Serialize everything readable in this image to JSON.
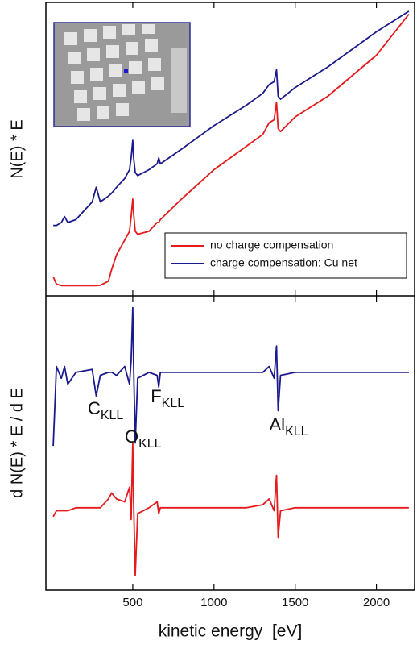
{
  "chart_data": [
    {
      "type": "line",
      "ylabel": "N(E) * E",
      "x": [
        10,
        30,
        60,
        80,
        100,
        150,
        250,
        275,
        300,
        350,
        370,
        400,
        450,
        480,
        490,
        500,
        505,
        515,
        530,
        600,
        650,
        660,
        670,
        800,
        1000,
        1200,
        1300,
        1340,
        1370,
        1385,
        1395,
        1410,
        1500,
        1700,
        2000,
        2200
      ],
      "xlim": [
        -35,
        2235
      ],
      "xticks": [
        500,
        1000,
        1500,
        2000
      ],
      "ylim": [
        0,
        100
      ],
      "legend": "lower right",
      "series": [
        {
          "name": "no charge compensation",
          "color": "#e41a1c",
          "values": [
            6.5,
            4,
            3.5,
            3.5,
            3.5,
            3.5,
            3.5,
            3.5,
            3.6,
            5,
            9,
            14,
            19,
            22,
            27,
            33,
            28,
            22,
            21,
            22,
            25,
            25,
            26,
            33,
            43,
            51,
            55,
            59,
            60,
            66,
            57,
            56,
            61,
            68,
            82,
            96
          ]
        },
        {
          "name": "charge compensation: Cu net",
          "color": "#1a1a8c",
          "values": [
            24,
            24,
            25,
            27,
            25,
            26,
            32,
            37,
            32,
            34,
            35,
            37,
            40,
            43,
            47,
            53,
            47,
            42,
            41,
            43,
            45,
            47,
            45,
            50,
            58,
            65,
            69,
            72,
            73,
            77,
            68,
            67,
            71,
            78,
            90,
            97
          ]
        }
      ]
    },
    {
      "type": "line",
      "ylabel": "d N(E) * E / d E",
      "xlabel": "kinetic energy  [eV]",
      "x": [
        10,
        30,
        60,
        80,
        100,
        150,
        250,
        275,
        300,
        350,
        370,
        400,
        450,
        480,
        490,
        500,
        505,
        515,
        530,
        600,
        650,
        660,
        670,
        800,
        1000,
        1200,
        1300,
        1340,
        1370,
        1385,
        1395,
        1410,
        1500,
        1700,
        2000,
        2200
      ],
      "xlim": [
        -35,
        2235
      ],
      "xticks": [
        500,
        1000,
        1500,
        2000
      ],
      "ylim": [
        0,
        100
      ],
      "series": [
        {
          "color": "#1a1a8c",
          "values": [
            49,
            76,
            72,
            76,
            70,
            74,
            75,
            66,
            73,
            74,
            74,
            73,
            76,
            70,
            78,
            96,
            76,
            50,
            72,
            74,
            73,
            69,
            74,
            74,
            74,
            74,
            74,
            76,
            72,
            83,
            61,
            73,
            74,
            74,
            74,
            74
          ]
        },
        {
          "color": "#e41a1c",
          "values": [
            25,
            27,
            27,
            27,
            27,
            28,
            28,
            28,
            28,
            31,
            33,
            31,
            30,
            35,
            24,
            50,
            30,
            5,
            26,
            28,
            30,
            26,
            28,
            28,
            28,
            28,
            29,
            31,
            27,
            39,
            18,
            27,
            28,
            28,
            28,
            28
          ]
        }
      ],
      "annotations": [
        {
          "text": "C",
          "sub": "KLL"
        },
        {
          "text": "O",
          "sub": "KLL"
        },
        {
          "text": "F",
          "sub": "KLL"
        },
        {
          "text": "Al",
          "sub": "KLL"
        }
      ]
    }
  ]
}
